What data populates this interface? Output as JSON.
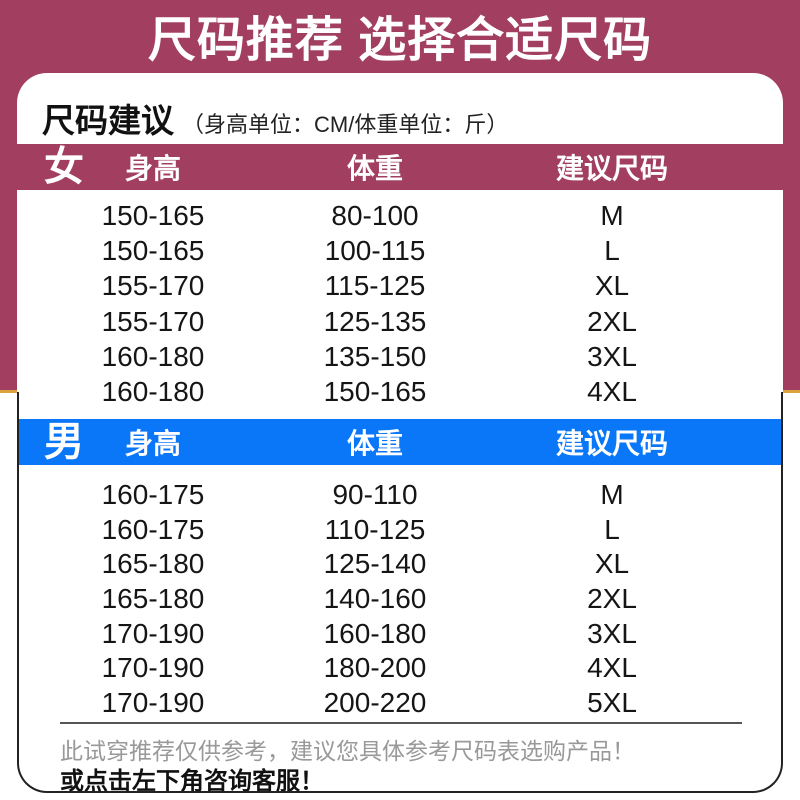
{
  "banner": {
    "title": "尺码推荐 选择合适尺码"
  },
  "card": {
    "heading": "尺码建议",
    "heading_note": "（身高单位：CM/体重单位：斤）"
  },
  "table": {
    "columns": {
      "height": "身高",
      "weight": "体重",
      "size": "建议尺码"
    },
    "sections": [
      {
        "gender": "女",
        "accent": "#a23f60",
        "rows": [
          {
            "height": "150-165",
            "weight": "80-100",
            "size": "M"
          },
          {
            "height": "150-165",
            "weight": "100-115",
            "size": "L"
          },
          {
            "height": "155-170",
            "weight": "115-125",
            "size": "XL"
          },
          {
            "height": "155-170",
            "weight": "125-135",
            "size": "2XL"
          },
          {
            "height": "160-180",
            "weight": "135-150",
            "size": "3XL"
          },
          {
            "height": "160-180",
            "weight": "150-165",
            "size": "4XL"
          }
        ]
      },
      {
        "gender": "男",
        "accent": "#0a76f8",
        "rows": [
          {
            "height": "160-175",
            "weight": "90-110",
            "size": "M"
          },
          {
            "height": "160-175",
            "weight": "110-125",
            "size": "L"
          },
          {
            "height": "165-180",
            "weight": "125-140",
            "size": "XL"
          },
          {
            "height": "165-180",
            "weight": "140-160",
            "size": "2XL"
          },
          {
            "height": "170-190",
            "weight": "160-180",
            "size": "3XL"
          },
          {
            "height": "170-190",
            "weight": "180-200",
            "size": "4XL"
          },
          {
            "height": "170-190",
            "weight": "200-220",
            "size": "5XL"
          }
        ]
      }
    ]
  },
  "footer": {
    "note1": "此试穿推荐仅供参考，建议您具体参考尺码表选购产品！",
    "note2": "或点击左下角咨询客服！"
  },
  "colors": {
    "maroon": "#a23f60",
    "blue": "#0a76f8",
    "gold": "#dba43f",
    "note_gray": "#999999"
  }
}
